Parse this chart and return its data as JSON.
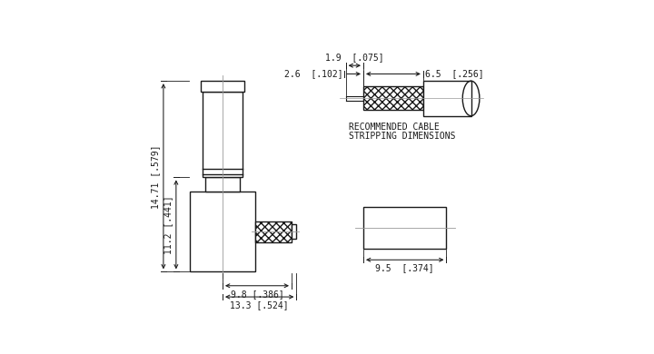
{
  "bg_color": "#ffffff",
  "line_color": "#1a1a1a",
  "dim_color": "#1a1a1a",
  "font_size_dim": 7.0,
  "recommended_cable_text": [
    "RECOMMENDED CABLE",
    "STRIPPING DIMENSIONS"
  ],
  "dims": {
    "height_14_71": "14.71 [.579]",
    "height_11_2": "11.2 [.441]",
    "width_9_8": "9.8 [.386]",
    "width_13_3": "13.3 [.524]",
    "strip_1_9": "1.9  [.075]",
    "strip_6_5": "6.5  [.256]",
    "strip_2_6": "2.6  [.102]",
    "end_9_5": "9.5  [.374]"
  }
}
